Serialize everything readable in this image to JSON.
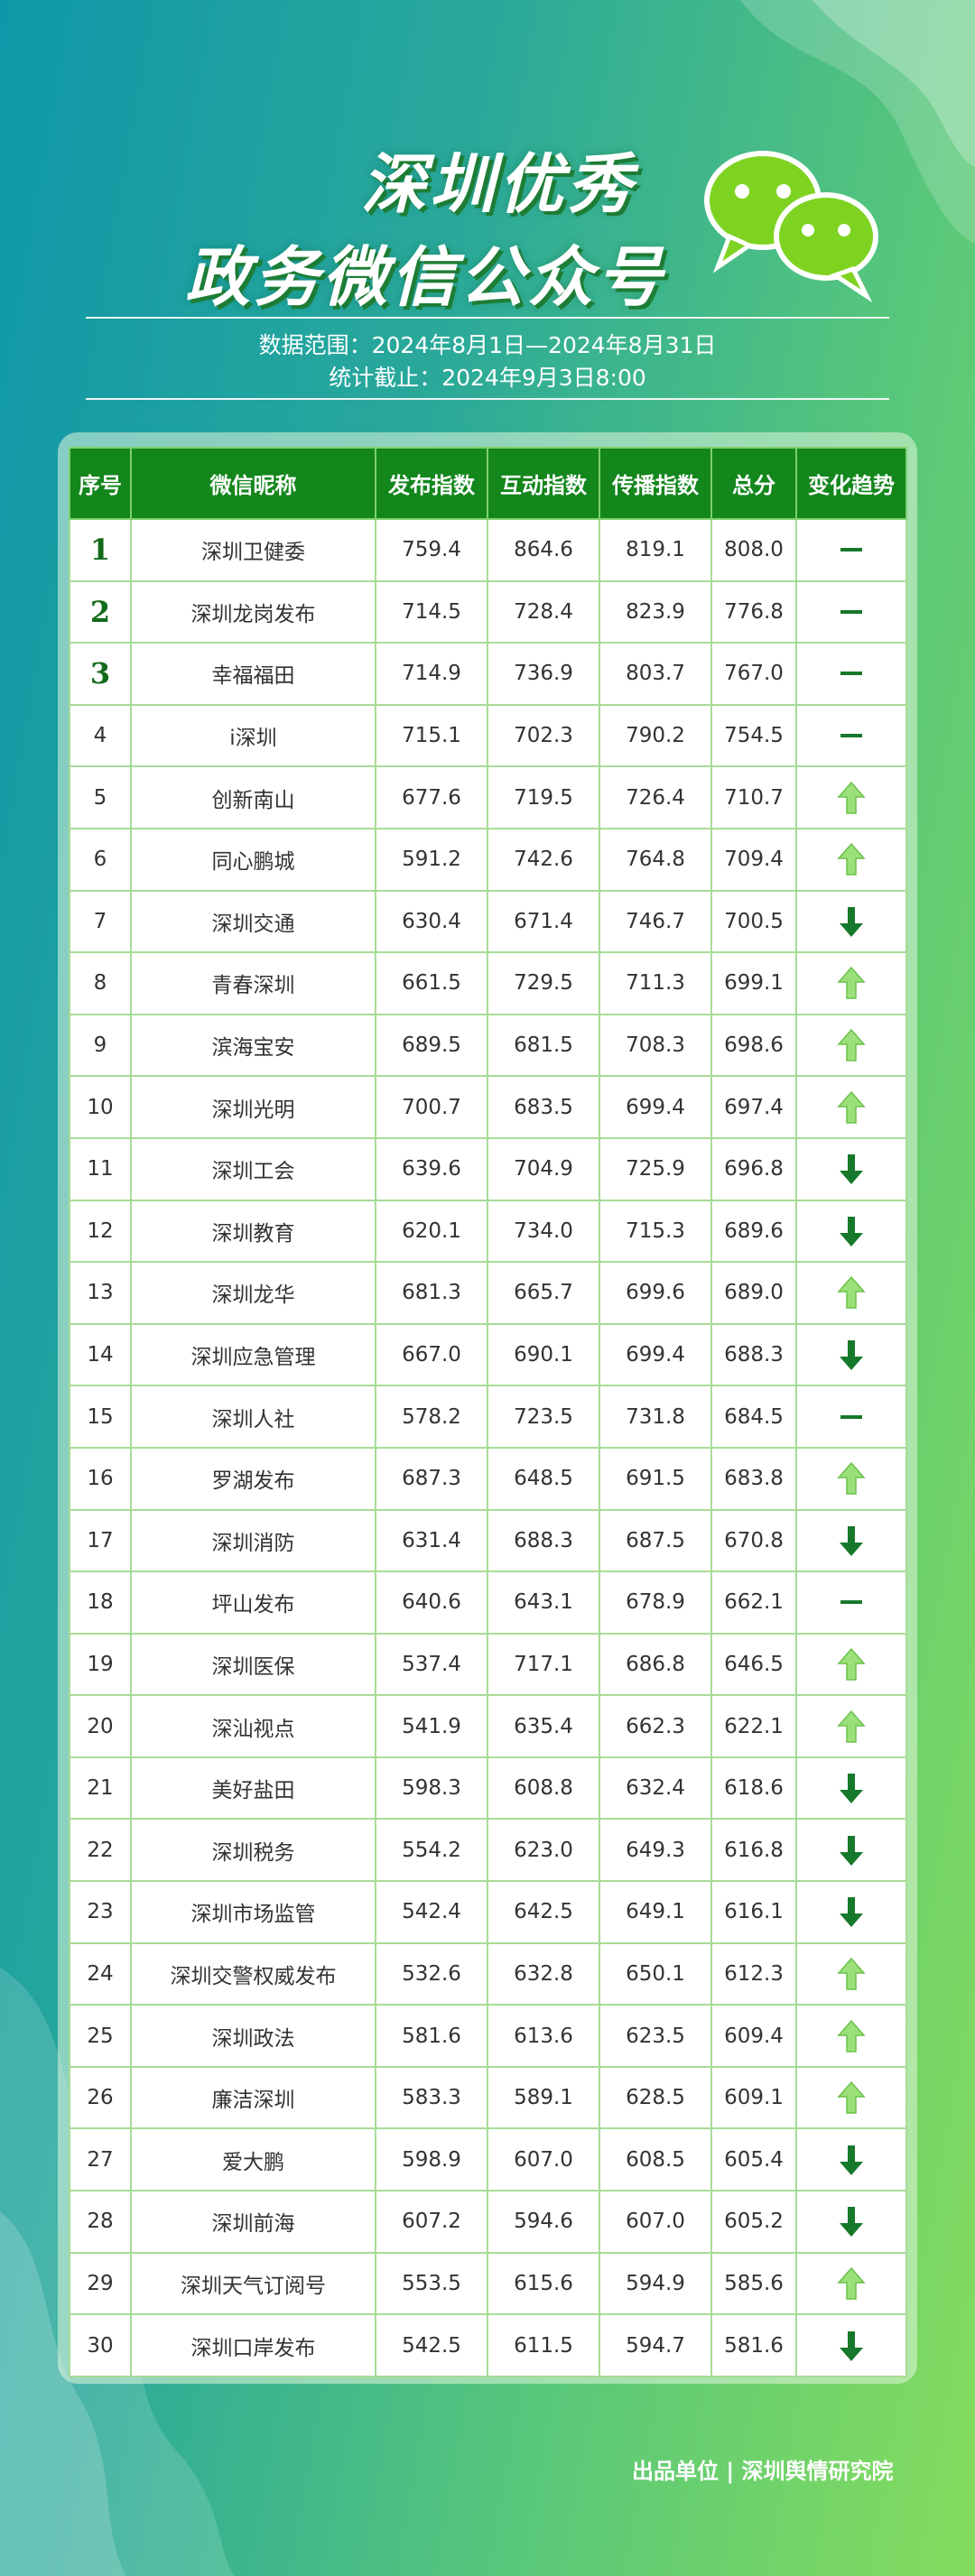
{
  "header": {
    "title_line1": "深圳优秀",
    "title_line2": "政务微信公众号",
    "date_range": "数据范围：2024年8月1日—2024年8月31日",
    "cutoff": "统计截止：2024年9月3日8:00"
  },
  "table": {
    "columns": [
      "序号",
      "微信昵称",
      "发布指数",
      "互动指数",
      "传播指数",
      "总分",
      "变化趋势"
    ],
    "rows": [
      [
        "1",
        "深圳卫健委",
        "759.4",
        "864.6",
        "819.1",
        "808.0"
      ],
      [
        "2",
        "深圳龙岗发布",
        "714.5",
        "728.4",
        "823.9",
        "776.8"
      ],
      [
        "3",
        "幸福福田",
        "714.9",
        "736.9",
        "803.7",
        "767.0"
      ],
      [
        "4",
        "i深圳",
        "715.1",
        "702.3",
        "790.2",
        "754.5"
      ],
      [
        "5",
        "创新南山",
        "677.6",
        "719.5",
        "726.4",
        "710.7"
      ],
      [
        "6",
        "同心鹏城",
        "591.2",
        "742.6",
        "764.8",
        "709.4"
      ],
      [
        "7",
        "深圳交通",
        "630.4",
        "671.4",
        "746.7",
        "700.5"
      ],
      [
        "8",
        "青春深圳",
        "661.5",
        "729.5",
        "711.3",
        "699.1"
      ],
      [
        "9",
        "滨海宝安",
        "689.5",
        "681.5",
        "708.3",
        "698.6"
      ],
      [
        "10",
        "深圳光明",
        "700.7",
        "683.5",
        "699.4",
        "697.4"
      ],
      [
        "11",
        "深圳工会",
        "639.6",
        "704.9",
        "725.9",
        "696.8"
      ],
      [
        "12",
        "深圳教育",
        "620.1",
        "734.0",
        "715.3",
        "689.6"
      ],
      [
        "13",
        "深圳龙华",
        "681.3",
        "665.7",
        "699.6",
        "689.0"
      ],
      [
        "14",
        "深圳应急管理",
        "667.0",
        "690.1",
        "699.4",
        "688.3"
      ],
      [
        "15",
        "深圳人社",
        "578.2",
        "723.5",
        "731.8",
        "684.5"
      ],
      [
        "16",
        "罗湖发布",
        "687.3",
        "648.5",
        "691.5",
        "683.8"
      ],
      [
        "17",
        "深圳消防",
        "631.4",
        "688.3",
        "687.5",
        "670.8"
      ],
      [
        "18",
        "坪山发布",
        "640.6",
        "643.1",
        "678.9",
        "662.1"
      ],
      [
        "19",
        "深圳医保",
        "537.4",
        "717.1",
        "686.8",
        "646.5"
      ],
      [
        "20",
        "深汕视点",
        "541.9",
        "635.4",
        "662.3",
        "622.1"
      ],
      [
        "21",
        "美好盐田",
        "598.3",
        "608.8",
        "632.4",
        "618.6"
      ],
      [
        "22",
        "深圳税务",
        "554.2",
        "623.0",
        "649.3",
        "616.8"
      ],
      [
        "23",
        "深圳市场监管",
        "542.4",
        "642.5",
        "649.1",
        "616.1"
      ],
      [
        "24",
        "深圳交警权威发布",
        "532.6",
        "632.8",
        "650.1",
        "612.3"
      ],
      [
        "25",
        "深圳政法",
        "581.6",
        "613.6",
        "623.5",
        "609.4"
      ],
      [
        "26",
        "廉洁深圳",
        "583.3",
        "589.1",
        "628.5",
        "609.1"
      ],
      [
        "27",
        "爱大鹏",
        "598.9",
        "607.0",
        "608.5",
        "605.4"
      ],
      [
        "28",
        "深圳前海",
        "607.2",
        "594.6",
        "607.0",
        "605.2"
      ],
      [
        "29",
        "深圳天气订阅号",
        "553.5",
        "615.6",
        "594.9",
        "585.6"
      ],
      [
        "30",
        "深圳口岸发布",
        "542.5",
        "611.5",
        "594.7",
        "581.6"
      ]
    ],
    "trends": [
      "flat",
      "flat",
      "flat",
      "flat",
      "up",
      "up",
      "down",
      "up",
      "up",
      "up",
      "down",
      "down",
      "up",
      "down",
      "flat",
      "up",
      "down",
      "flat",
      "up",
      "up",
      "down",
      "down",
      "down",
      "up",
      "up",
      "up",
      "down",
      "down",
      "up",
      "down"
    ]
  },
  "footer": "出品单位 | 深圳舆情研究院"
}
